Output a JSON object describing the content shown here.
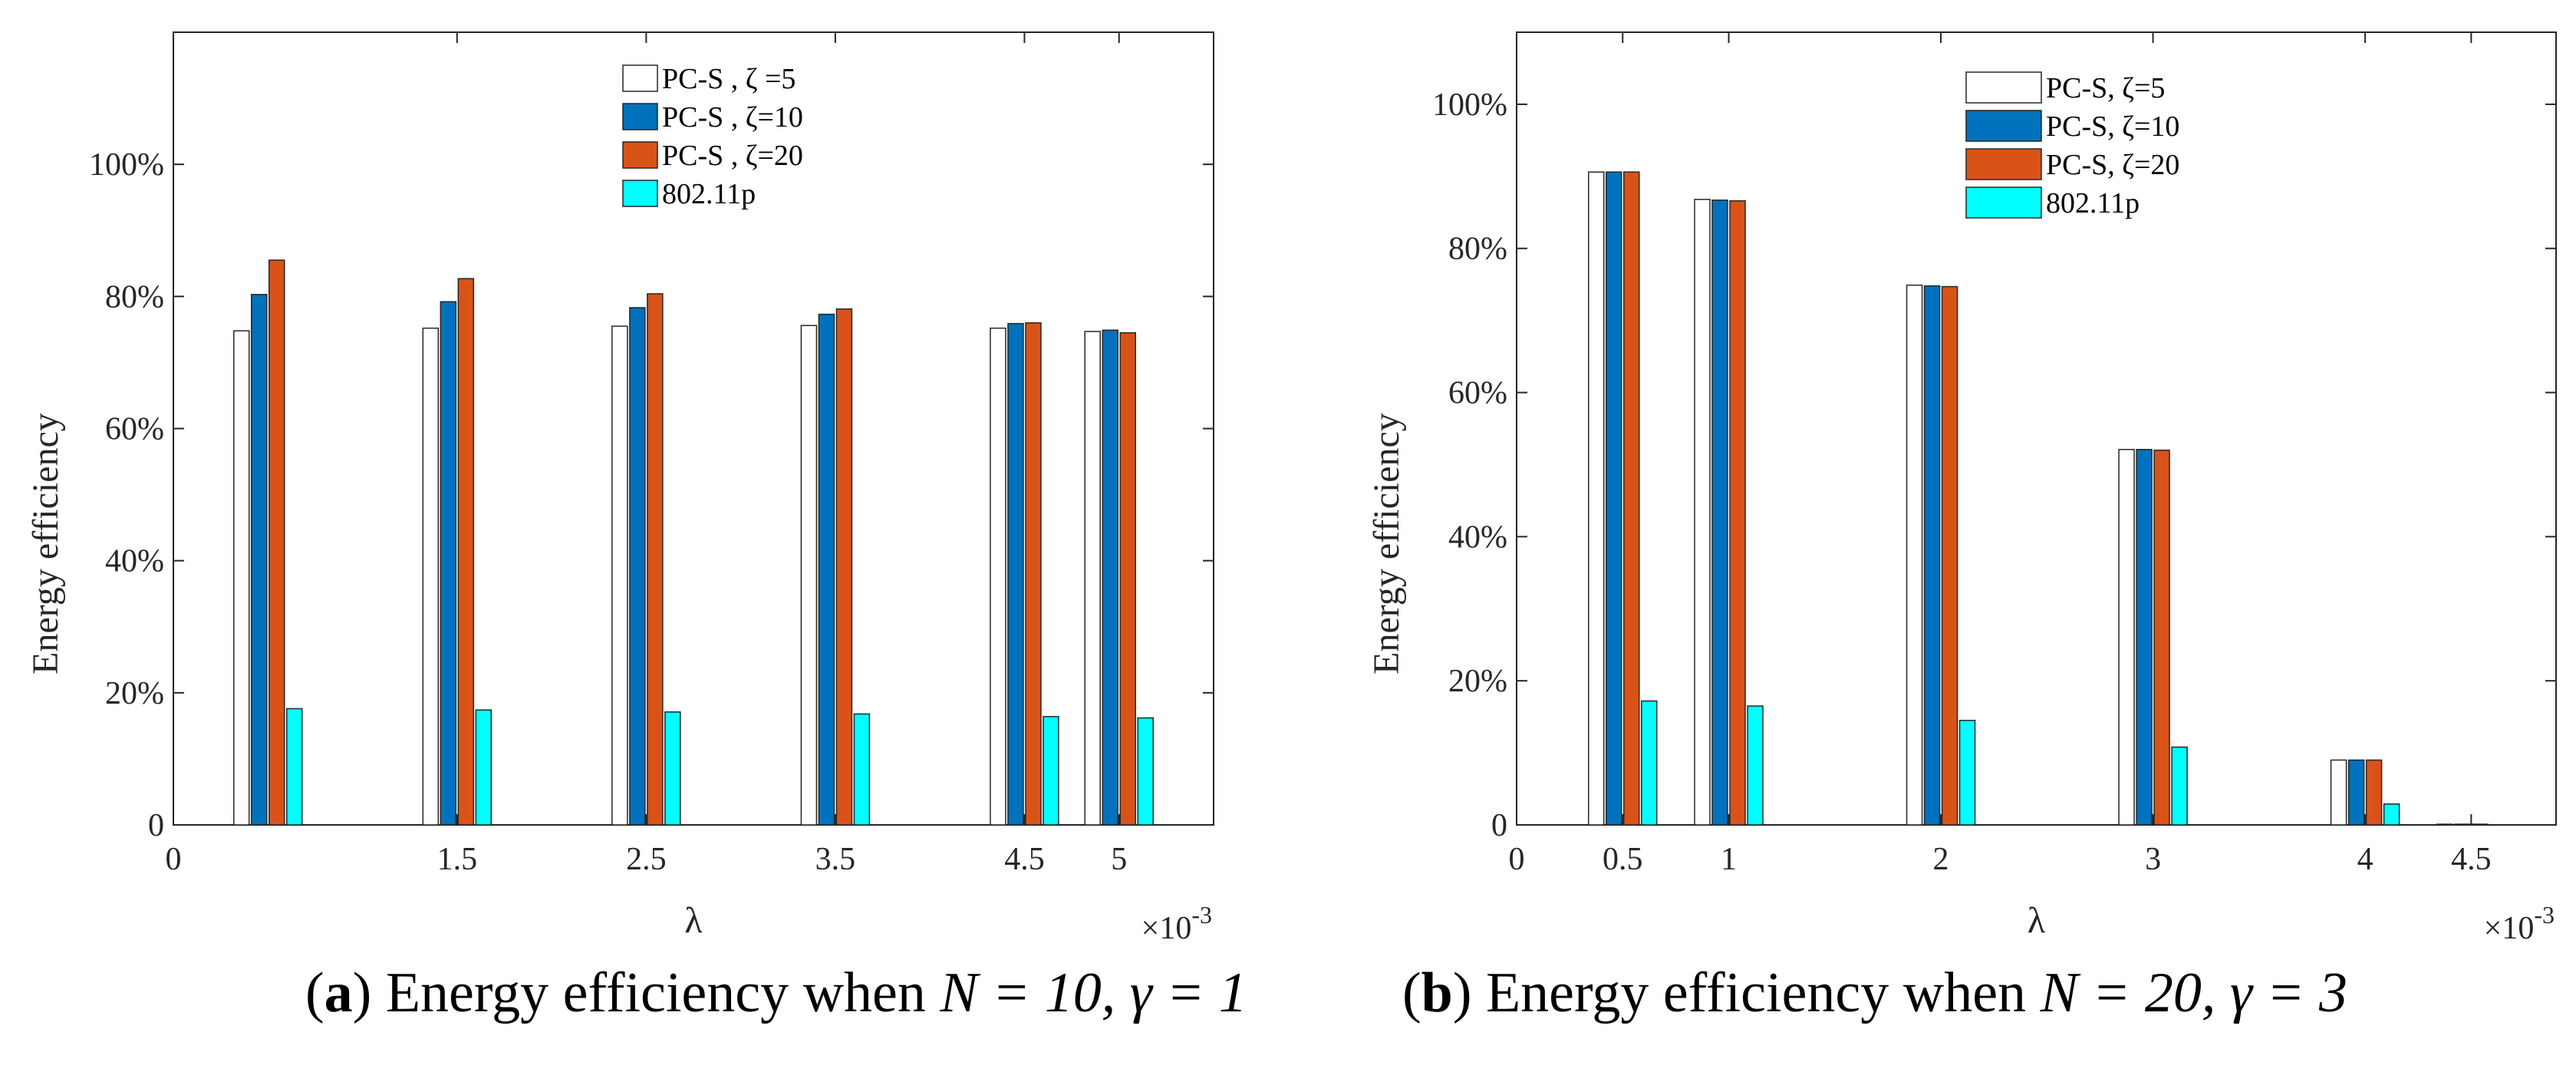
{
  "chart_data": [
    {
      "type": "bar",
      "panel": "a",
      "caption_label": "a",
      "caption_text": "Energy efficiency when",
      "caption_math": "N = 10, γ = 1",
      "xlabel": "λ",
      "ylabel": "Energy efficiency",
      "x_multiplier": "×10",
      "x_multiplier_exp": "-3",
      "xlim": [
        0,
        5.5
      ],
      "ylim": [
        0,
        1.2
      ],
      "yticks": [
        0,
        0.2,
        0.4,
        0.6,
        0.8,
        1.0
      ],
      "ytick_labels": [
        "0",
        "20%",
        "40%",
        "60%",
        "80%",
        "100%"
      ],
      "xticks": [
        0,
        1.5,
        2.5,
        3.5,
        4.5,
        5
      ],
      "xtick_labels": [
        "0",
        "1.5",
        "2.5",
        "3.5",
        "4.5",
        "5"
      ],
      "x": [
        0.5,
        1.5,
        2.5,
        3.5,
        4.5,
        5
      ],
      "series": [
        {
          "name": "PC-S , ζ =5",
          "color": "#ffffff",
          "values": [
            0.748,
            0.752,
            0.755,
            0.756,
            0.752,
            0.747
          ]
        },
        {
          "name": "PC-S , ζ=10",
          "color": "#0072bd",
          "values": [
            0.803,
            0.792,
            0.783,
            0.773,
            0.759,
            0.749
          ]
        },
        {
          "name": "PC-S , ζ=20",
          "color": "#d95319",
          "values": [
            0.855,
            0.827,
            0.804,
            0.781,
            0.76,
            0.745
          ]
        },
        {
          "name": "802.11p",
          "color": "#00ffff",
          "values": [
            0.176,
            0.174,
            0.171,
            0.168,
            0.164,
            0.162
          ]
        }
      ],
      "legend_position": "top-center"
    },
    {
      "type": "bar",
      "panel": "b",
      "caption_label": "b",
      "caption_text": "Energy efficiency when",
      "caption_math": "N = 20, γ = 3",
      "xlabel": "λ",
      "ylabel": "Energy efficiency",
      "x_multiplier": "×10",
      "x_multiplier_exp": "-3",
      "xlim": [
        0,
        4.9
      ],
      "ylim": [
        0,
        1.1
      ],
      "yticks": [
        0,
        0.2,
        0.4,
        0.6,
        0.8,
        1.0
      ],
      "ytick_labels": [
        "0",
        "20%",
        "40%",
        "60%",
        "80%",
        "100%"
      ],
      "xticks": [
        0,
        0.5,
        1,
        2,
        3,
        4,
        4.5
      ],
      "xtick_labels": [
        "0",
        "0.5",
        "1",
        "2",
        "3",
        "4",
        "4.5"
      ],
      "x": [
        0.5,
        1,
        2,
        3,
        4,
        4.5
      ],
      "series": [
        {
          "name": "PC-S, ζ=5",
          "color": "#ffffff",
          "values": [
            0.906,
            0.868,
            0.749,
            0.521,
            0.09,
            0.001
          ]
        },
        {
          "name": "PC-S, ζ=10",
          "color": "#0072bd",
          "values": [
            0.906,
            0.867,
            0.748,
            0.521,
            0.09,
            0.001
          ]
        },
        {
          "name": "PC-S, ζ=20",
          "color": "#d95319",
          "values": [
            0.906,
            0.866,
            0.747,
            0.52,
            0.09,
            0.001
          ]
        },
        {
          "name": "802.11p",
          "color": "#00ffff",
          "values": [
            0.172,
            0.165,
            0.145,
            0.108,
            0.029,
            0.0
          ]
        }
      ],
      "legend_position": "top-center"
    }
  ]
}
